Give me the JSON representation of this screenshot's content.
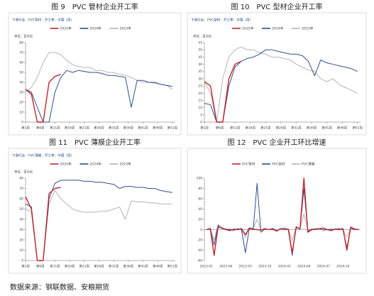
{
  "chart_data": [
    {
      "type": "line",
      "caption": "图 9　PVC 管材企业开工率",
      "subtitle": "下游行业：PVC管材：开工率：中国（周）",
      "y_label": "单位：百分比",
      "x": [
        1,
        3,
        5,
        7,
        9,
        11,
        13,
        15,
        17,
        19,
        21,
        23,
        25,
        27,
        29,
        31,
        33,
        35,
        37,
        39,
        41,
        43,
        45,
        47,
        49,
        51
      ],
      "xticks": [
        {
          "value": 1,
          "label": "第1周"
        },
        {
          "value": 6,
          "label": "第6周"
        },
        {
          "value": 11,
          "label": "第11周"
        },
        {
          "value": 16,
          "label": "第16周"
        },
        {
          "value": 21,
          "label": "第21周"
        },
        {
          "value": 26,
          "label": "第26周"
        },
        {
          "value": 31,
          "label": "第31周"
        },
        {
          "value": 36,
          "label": "第36周"
        },
        {
          "value": 41,
          "label": "第41周"
        },
        {
          "value": 46,
          "label": "第46周"
        },
        {
          "value": 51,
          "label": "第51周"
        }
      ],
      "xlim": [
        1,
        52
      ],
      "ylim": [
        0,
        80
      ],
      "yticks": [
        0,
        10,
        20,
        30,
        40,
        50,
        60,
        70,
        80
      ],
      "series": [
        {
          "name": "2025年",
          "color": "#c0262d",
          "values": [
            33,
            28,
            0,
            0,
            40,
            46,
            48,
            null,
            null,
            null,
            null,
            null,
            null,
            null,
            null,
            null,
            null,
            null,
            null,
            null,
            null,
            null,
            null,
            null,
            null,
            null
          ]
        },
        {
          "name": "2024年",
          "color": "#2f4f8f",
          "values": [
            33,
            30,
            15,
            0,
            0,
            30,
            45,
            52,
            50,
            52,
            51,
            50,
            50,
            49,
            47,
            47,
            46,
            45,
            15,
            42,
            42,
            40,
            40,
            38,
            37,
            36
          ]
        },
        {
          "name": "2023年",
          "color": "#b4b4b4",
          "values": [
            30,
            35,
            45,
            60,
            70,
            70,
            68,
            62,
            58,
            56,
            55,
            55,
            52,
            52,
            50,
            50,
            48,
            47,
            45,
            42,
            40,
            40,
            39,
            38,
            37,
            33
          ]
        }
      ]
    },
    {
      "type": "line",
      "caption": "图 10　PVC 型材企业开工率",
      "subtitle": "下游行业：PVC型材：开工率：中国（周）",
      "y_label": "单位：百分比",
      "x": [
        1,
        3,
        5,
        7,
        9,
        11,
        13,
        15,
        17,
        19,
        21,
        23,
        25,
        27,
        29,
        31,
        33,
        35,
        37,
        39,
        41,
        43,
        45,
        47,
        49,
        51
      ],
      "xticks": [
        {
          "value": 1,
          "label": "第1周"
        },
        {
          "value": 6,
          "label": "第6周"
        },
        {
          "value": 11,
          "label": "第11周"
        },
        {
          "value": 16,
          "label": "第16周"
        },
        {
          "value": 21,
          "label": "第21周"
        },
        {
          "value": 26,
          "label": "第26周"
        },
        {
          "value": 31,
          "label": "第31周"
        },
        {
          "value": 36,
          "label": "第36周"
        },
        {
          "value": 41,
          "label": "第41周"
        },
        {
          "value": 46,
          "label": "第46周"
        },
        {
          "value": 51,
          "label": "第51周"
        }
      ],
      "xlim": [
        1,
        52
      ],
      "ylim": [
        0,
        55
      ],
      "yticks": [
        0,
        5,
        10,
        15,
        20,
        25,
        30,
        35,
        40,
        45,
        50,
        55
      ],
      "series": [
        {
          "name": "2025年",
          "color": "#c0262d",
          "values": [
            28,
            25,
            0,
            0,
            30,
            40,
            42,
            null,
            null,
            null,
            null,
            null,
            null,
            null,
            null,
            null,
            null,
            null,
            null,
            null,
            null,
            null,
            null,
            null,
            null,
            null
          ]
        },
        {
          "name": "2024年",
          "color": "#2f4f8f",
          "values": [
            13,
            12,
            0,
            0,
            25,
            38,
            42,
            44,
            45,
            47,
            50,
            50,
            49,
            48,
            47,
            47,
            46,
            42,
            32,
            43,
            41,
            40,
            39,
            38,
            37,
            35
          ]
        },
        {
          "name": "2023年",
          "color": "#b4b4b4",
          "values": [
            28,
            20,
            0,
            30,
            45,
            50,
            52,
            50,
            50,
            48,
            47,
            45,
            45,
            44,
            43,
            40,
            38,
            36,
            35,
            30,
            28,
            30,
            26,
            24,
            22,
            20
          ]
        }
      ]
    },
    {
      "type": "line",
      "caption": "图 11　PVC 薄膜企业开工率",
      "subtitle": "下游行业：PVC薄膜：开工率：中国（周）",
      "y_label": "单位：百分比",
      "x": [
        1,
        3,
        5,
        7,
        9,
        11,
        13,
        15,
        17,
        19,
        21,
        23,
        25,
        27,
        29,
        31,
        33,
        35,
        37,
        39,
        41,
        43,
        45,
        47,
        49,
        51
      ],
      "xticks": [
        {
          "value": 1,
          "label": "第1周"
        },
        {
          "value": 6,
          "label": "第6周"
        },
        {
          "value": 11,
          "label": "第11周"
        },
        {
          "value": 16,
          "label": "第16周"
        },
        {
          "value": 21,
          "label": "第21周"
        },
        {
          "value": 26,
          "label": "第26周"
        },
        {
          "value": 31,
          "label": "第31周"
        },
        {
          "value": 36,
          "label": "第36周"
        },
        {
          "value": 41,
          "label": "第41周"
        },
        {
          "value": 46,
          "label": "第46周"
        },
        {
          "value": 51,
          "label": "第51周"
        }
      ],
      "xlim": [
        1,
        52
      ],
      "ylim": [
        0,
        80
      ],
      "yticks": [
        0,
        10,
        20,
        30,
        40,
        50,
        60,
        70,
        80
      ],
      "series": [
        {
          "name": "2025年",
          "color": "#c0262d",
          "values": [
            62,
            50,
            0,
            0,
            65,
            70,
            71,
            null,
            null,
            null,
            null,
            null,
            null,
            null,
            null,
            null,
            null,
            null,
            null,
            null,
            null,
            null,
            null,
            null,
            null,
            null
          ]
        },
        {
          "name": "2024年",
          "color": "#2f4f8f",
          "values": [
            55,
            52,
            0,
            0,
            60,
            75,
            78,
            78,
            78,
            78,
            77,
            77,
            76,
            76,
            75,
            74,
            70,
            72,
            72,
            71,
            71,
            70,
            70,
            68,
            67,
            66
          ]
        },
        {
          "name": "2023年",
          "color": "#b4b4b4",
          "values": [
            50,
            47,
            0,
            0,
            55,
            68,
            60,
            55,
            50,
            48,
            47,
            47,
            47,
            48,
            48,
            50,
            52,
            40,
            58,
            57,
            57,
            56,
            56,
            55,
            55,
            55
          ]
        }
      ]
    },
    {
      "type": "line",
      "caption": "图 12　PVC 企业开工环比增速",
      "categories": [
        "2023-01",
        null,
        null,
        null,
        null,
        "2023-04",
        null,
        null,
        null,
        null,
        "2023-07",
        null,
        null,
        null,
        null,
        "2023-10",
        null,
        null,
        null,
        null,
        "2024-01",
        null,
        null,
        null,
        null,
        "2024-04",
        null,
        null,
        null,
        null,
        "2024-07",
        null,
        null,
        null,
        null,
        "2024-10",
        null,
        null,
        null,
        null
      ],
      "ylim": [
        -60,
        100
      ],
      "yticks": [
        -60,
        -40,
        -20,
        0,
        20,
        40,
        60,
        80,
        100
      ],
      "series": [
        {
          "name": "PVC管材",
          "color": "#c0262d",
          "values": [
            0,
            2,
            -50,
            5,
            3,
            0,
            -2,
            1,
            0,
            2,
            -10,
            3,
            1,
            0,
            -1,
            2,
            0,
            1,
            -3,
            2,
            0,
            1,
            -45,
            4,
            2,
            100,
            -5,
            0,
            1,
            2,
            3,
            0,
            -2,
            1,
            0,
            2,
            -40,
            5,
            1,
            0
          ]
        },
        {
          "name": "PVC型材",
          "color": "#2f4f8f",
          "values": [
            0,
            1,
            -30,
            8,
            2,
            1,
            0,
            -1,
            2,
            0,
            -45,
            2,
            0,
            90,
            -5,
            1,
            0,
            2,
            -2,
            1,
            3,
            0,
            -50,
            6,
            1,
            80,
            -3,
            1,
            0,
            2,
            -1,
            0,
            1,
            0,
            2,
            0,
            -35,
            3,
            0,
            1
          ]
        },
        {
          "name": "PVC薄膜",
          "color": "#b4b4b4",
          "values": [
            0,
            3,
            -20,
            10,
            5,
            0,
            2,
            -2,
            1,
            1,
            -15,
            4,
            2,
            20,
            0,
            1,
            0,
            3,
            -1,
            2,
            0,
            1,
            -20,
            5,
            2,
            30,
            0,
            1,
            2,
            1,
            0,
            1,
            -1,
            2,
            1,
            0,
            -15,
            4,
            1,
            0
          ]
        }
      ]
    }
  ],
  "source": "数据来源：钢联数据、安粮期货"
}
